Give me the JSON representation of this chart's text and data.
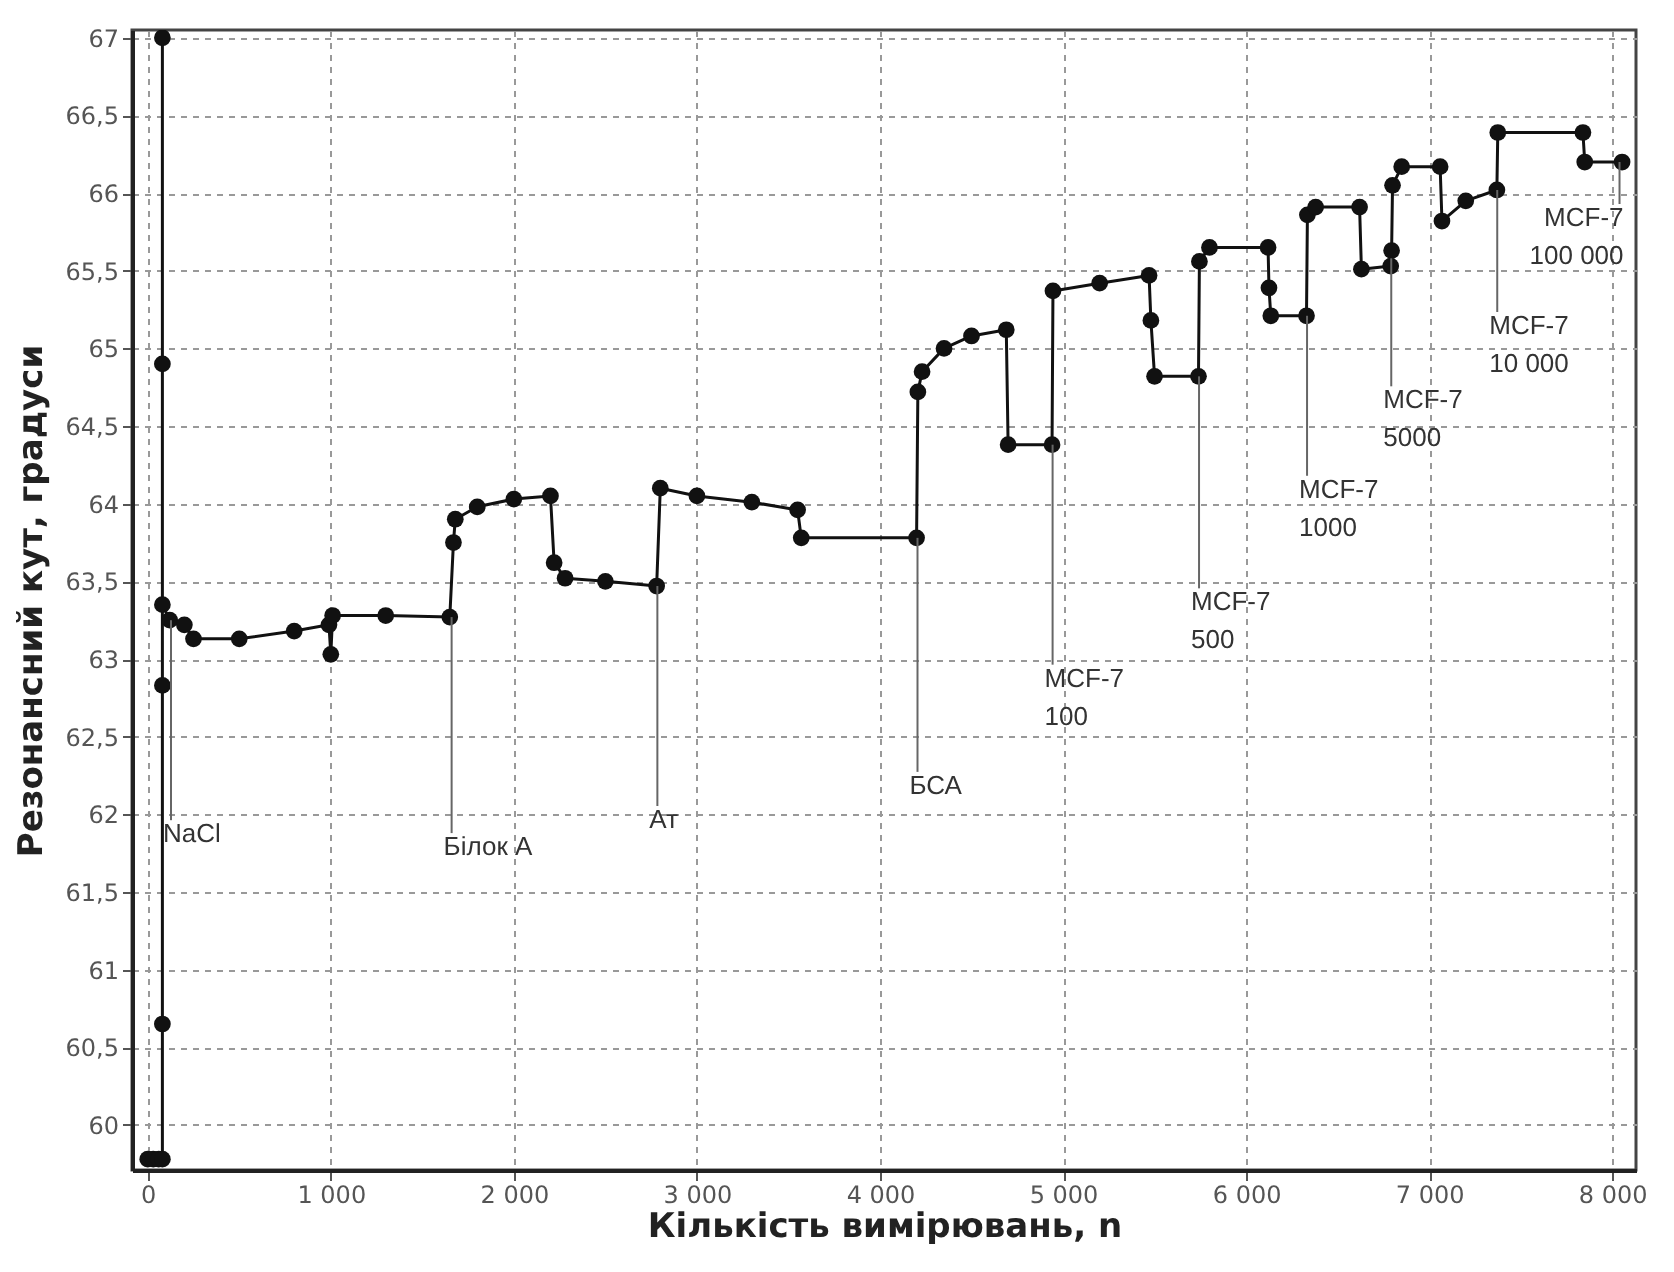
{
  "chart_data": {
    "type": "line",
    "xlabel": "Кількість вимірювань, n",
    "ylabel": "Резонансний кут, градуси",
    "xlim": [
      -86,
      8130
    ],
    "ylim": [
      59.71,
      67.05
    ],
    "xticks": [
      0,
      {
        "value": 1000,
        "label": "1 000"
      },
      {
        "value": 2000,
        "label": "2 000"
      },
      {
        "value": 3000,
        "label": "3 000"
      },
      {
        "value": 4000,
        "label": "4 000"
      },
      {
        "value": 5000,
        "label": "5 000"
      },
      {
        "value": 6000,
        "label": "6 000"
      },
      {
        "value": 7000,
        "label": "7 000"
      },
      {
        "value": 8000,
        "label": "8 000"
      }
    ],
    "yticks": [
      60,
      {
        "value": 60.5,
        "label": "60,5"
      },
      61,
      {
        "value": 61.5,
        "label": "61,5"
      },
      62,
      {
        "value": 62.5,
        "label": "62,5"
      },
      63,
      {
        "value": 63.5,
        "label": "63,5"
      },
      64,
      {
        "value": 64.5,
        "label": "64,5"
      },
      65,
      {
        "value": 65.5,
        "label": "65,5"
      },
      66,
      {
        "value": 66.5,
        "label": "66,5"
      },
      67
    ],
    "grid": true,
    "marker": "circle",
    "line_style": "solid",
    "series": [
      {
        "color": "#111111",
        "x": [
          0,
          30,
          60,
          80,
          80,
          80,
          80,
          80,
          80,
          120,
          200,
          250,
          500,
          800,
          990,
          1000,
          1010,
          1300,
          1650,
          1670,
          1680,
          1800,
          2000,
          2200,
          2220,
          2280,
          2500,
          2780,
          2800,
          3000,
          3300,
          3550,
          3570,
          4200,
          4207,
          4230,
          4350,
          4500,
          4690,
          4700,
          4940,
          4945,
          5200,
          5470,
          5480,
          5500,
          5740,
          5745,
          5800,
          6120,
          6125,
          6135,
          6330,
          6335,
          6380,
          6620,
          6630,
          6790,
          6795,
          6800,
          6850,
          7060,
          7070,
          7200,
          7370,
          7375,
          7840,
          7850,
          8054
        ],
        "values": [
          59.78,
          59.78,
          59.78,
          59.78,
          60.65,
          62.83,
          64.9,
          67.0,
          63.35,
          63.25,
          63.22,
          63.13,
          63.13,
          63.18,
          63.22,
          63.03,
          63.28,
          63.28,
          63.27,
          63.75,
          63.9,
          63.98,
          64.03,
          64.05,
          63.62,
          63.52,
          63.5,
          63.47,
          64.1,
          64.05,
          64.01,
          63.96,
          63.78,
          63.78,
          64.72,
          64.85,
          65.0,
          65.08,
          65.12,
          64.38,
          64.38,
          65.37,
          65.42,
          65.47,
          65.18,
          64.82,
          64.82,
          65.56,
          65.65,
          65.65,
          65.39,
          65.21,
          65.21,
          65.86,
          65.91,
          65.91,
          65.51,
          65.53,
          65.63,
          66.05,
          66.17,
          66.17,
          65.82,
          65.95,
          66.02,
          66.39,
          66.39,
          66.2,
          66.2
        ]
      }
    ],
    "annotations": [
      {
        "text": "NaCl",
        "x": 127,
        "y": 63.25
      },
      {
        "text": "Білок А",
        "x": 1660,
        "y": 63.27
      },
      {
        "text": "Ат",
        "x": 2784,
        "y": 63.47
      },
      {
        "text": "БСА",
        "x": 4205,
        "y": 63.78
      },
      {
        "text": "MCF-7\n100",
        "x": 4943,
        "y": 64.38
      },
      {
        "text": "MCF-7\n500",
        "x": 5743,
        "y": 64.82
      },
      {
        "text": "MCF-7\n1000",
        "x": 6333,
        "y": 65.21
      },
      {
        "text": "MCF-7\n5000",
        "x": 6793,
        "y": 65.58
      },
      {
        "text": "MCF-7\n10 000",
        "x": 7372,
        "y": 66.02
      },
      {
        "text": "MCF-7\n100 000",
        "x": 8040,
        "y": 66.2
      }
    ]
  }
}
